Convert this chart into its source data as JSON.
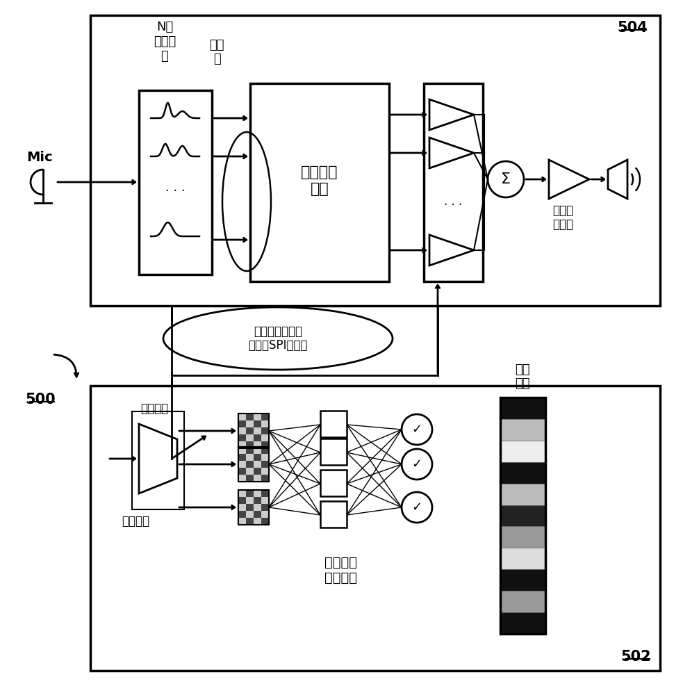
{
  "bg_color": "#ffffff",
  "label_504": "504",
  "label_502": "502",
  "label_500": "500",
  "label_mic": "Mic",
  "label_filter1": "N带",
  "label_filter2": "滤波器",
  "label_filter3": "组",
  "label_energy1": "带能",
  "label_energy2": "级",
  "label_core": "核心专有\n处理",
  "label_speaker_drv": "扬声器\n驱动器",
  "label_interface": "数字芯片间接口\n（例如SPI总线）",
  "label_demux": "解复用器",
  "label_interface_ckt": "接口电路",
  "label_deep_speech": "深度语音\n增强网路",
  "label_rate_mask": "比率\n掩模",
  "rate_mask_bands": [
    "#111111",
    "#bbbbbb",
    "#eeeeee",
    "#111111",
    "#bbbbbb",
    "#222222",
    "#999999",
    "#dddddd",
    "#111111",
    "#999999",
    "#111111"
  ],
  "font_cn": 12
}
